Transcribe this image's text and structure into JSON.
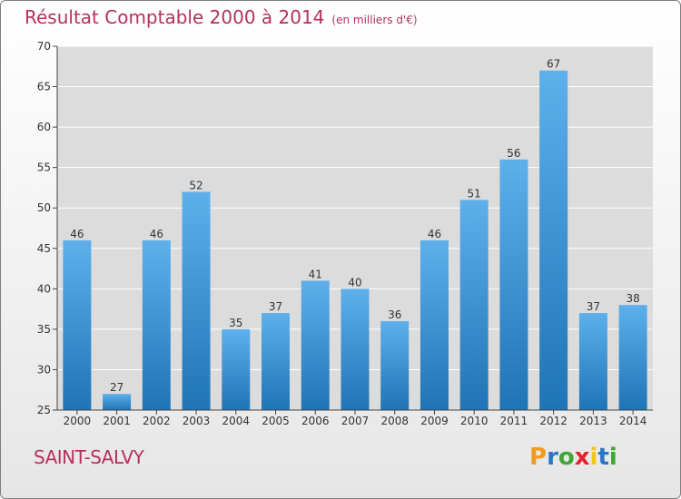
{
  "chart_data": {
    "type": "bar",
    "title": "Résultat Comptable 2000 à 2014",
    "subtitle": "(en milliers d'€)",
    "categories": [
      "2000",
      "2001",
      "2002",
      "2003",
      "2004",
      "2005",
      "2006",
      "2007",
      "2008",
      "2009",
      "2010",
      "2011",
      "2012",
      "2013",
      "2014"
    ],
    "values": [
      46,
      27,
      46,
      52,
      35,
      37,
      41,
      40,
      36,
      46,
      51,
      56,
      67,
      37,
      38
    ],
    "ylim": [
      25,
      70
    ],
    "yticks": [
      25,
      30,
      35,
      40,
      45,
      50,
      55,
      60,
      65,
      70
    ],
    "xlabel": "",
    "ylabel": "",
    "grid": true
  },
  "place_name": "SAINT-SALVY",
  "logo": {
    "letters": [
      "P",
      "r",
      "o",
      "x",
      "i",
      "t",
      "i"
    ],
    "colors": [
      "#f39a1e",
      "#2d77c2",
      "#3fa535",
      "#e2222b",
      "#f2c80f",
      "#2d77c2",
      "#3fa535"
    ]
  },
  "colors": {
    "title": "#b5315a",
    "bar_light": "#5eb0ec",
    "bar_dark": "#1f74b5",
    "grid": "#ffffff"
  }
}
